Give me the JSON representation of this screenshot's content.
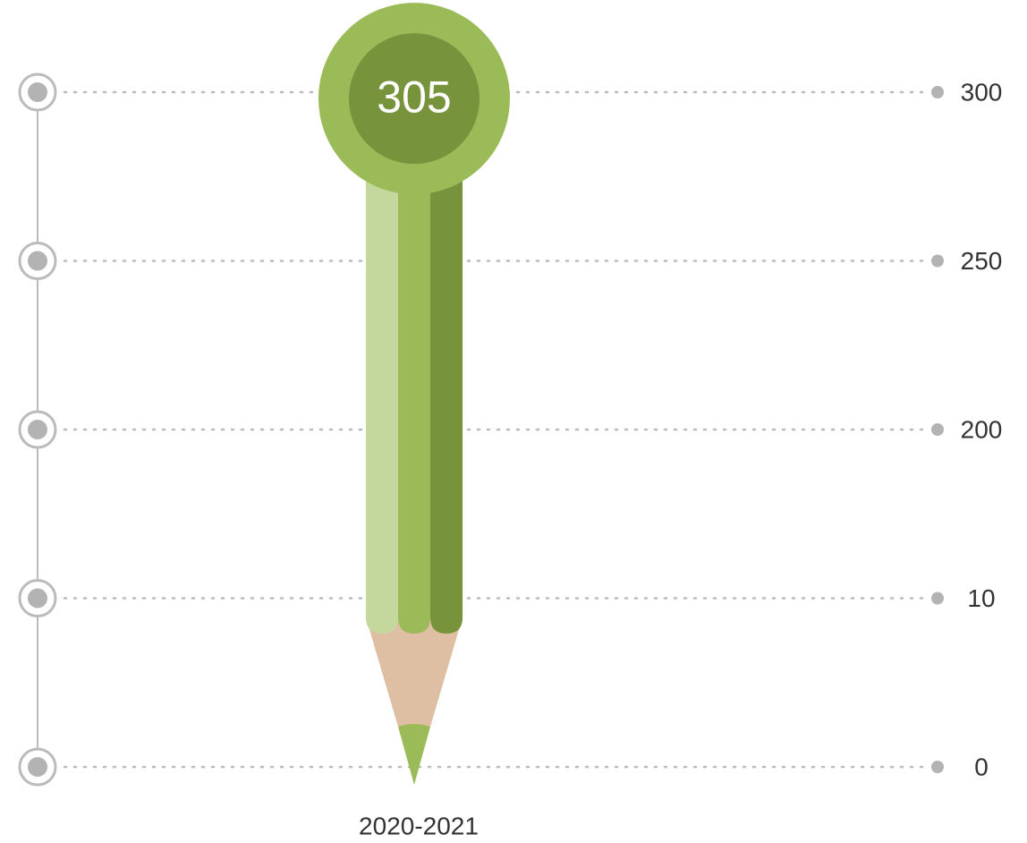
{
  "chart_data": {
    "type": "bar",
    "categories": [
      "2020-2021"
    ],
    "values": [
      305
    ],
    "ylim": [
      0,
      300
    ],
    "yticks": [
      0,
      10,
      200,
      250,
      300
    ],
    "colors": [
      "#c4d79c",
      "#9bbb59",
      "#77933c"
    ],
    "grid": true
  }
}
